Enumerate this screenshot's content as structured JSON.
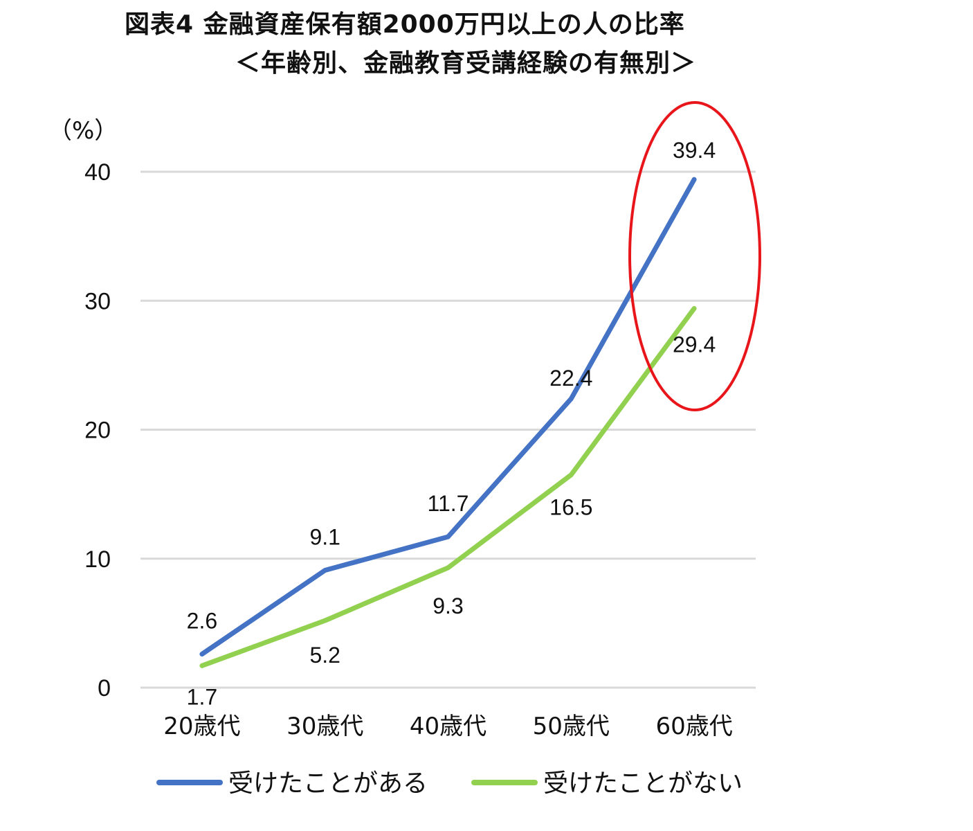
{
  "title": {
    "line1": "図表4 金融資産保有額2000万円以上の人の比率",
    "line2": "＜年齢別、金融教育受講経験の有無別＞"
  },
  "colors": {
    "series_blue": "#4472c4",
    "series_green": "#92d050",
    "highlight": "#e8161b",
    "gridline": "#d9d9d9"
  },
  "chart_data": {
    "type": "line",
    "categories": [
      "20歳代",
      "30歳代",
      "40歳代",
      "50歳代",
      "60歳代"
    ],
    "series": [
      {
        "name": "受けたことがある",
        "values": [
          2.6,
          9.1,
          11.7,
          22.4,
          39.4
        ],
        "labels": [
          "2.6",
          "9.1",
          "11.7",
          "22.4",
          "39.4"
        ]
      },
      {
        "name": "受けたことがない",
        "values": [
          1.7,
          5.2,
          9.3,
          16.5,
          29.4
        ],
        "labels": [
          "1.7",
          "5.2",
          "9.3",
          "16.5",
          "29.4"
        ]
      }
    ],
    "ylabel": "（%）",
    "ylim": [
      0,
      40
    ],
    "yticks": [
      0,
      10,
      20,
      30,
      40
    ],
    "ytick_labels": [
      "0",
      "10",
      "20",
      "30",
      "40"
    ],
    "grid": true,
    "legend_position": "bottom",
    "annotation": {
      "type": "ellipse",
      "target_category": "60歳代"
    }
  }
}
